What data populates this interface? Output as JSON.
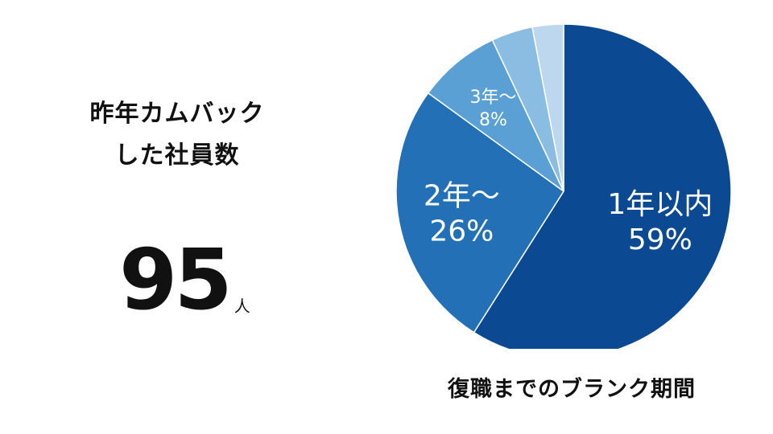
{
  "stat": {
    "title_line1": "昨年カムバック",
    "title_line2": "した社員数",
    "value": "95",
    "unit": "人"
  },
  "chart_data": {
    "type": "pie",
    "title": "復職までのブランク期間",
    "slices": [
      {
        "label_line1": "1年以内",
        "label_line2": "59%",
        "value": 59,
        "color": "#0b4a92"
      },
      {
        "label_line1": "2年〜",
        "label_line2": "26%",
        "value": 26,
        "color": "#2470b6"
      },
      {
        "label_line1": "3年〜",
        "label_line2": "8%",
        "value": 8,
        "color": "#5aa0d4"
      },
      {
        "label_line1": "",
        "label_line2": "",
        "value": 4,
        "color": "#8bbde2"
      },
      {
        "label_line1": "",
        "label_line2": "",
        "value": 3,
        "color": "#bcd7ee"
      }
    ],
    "start": "12 o'clock",
    "direction": "clockwise"
  }
}
